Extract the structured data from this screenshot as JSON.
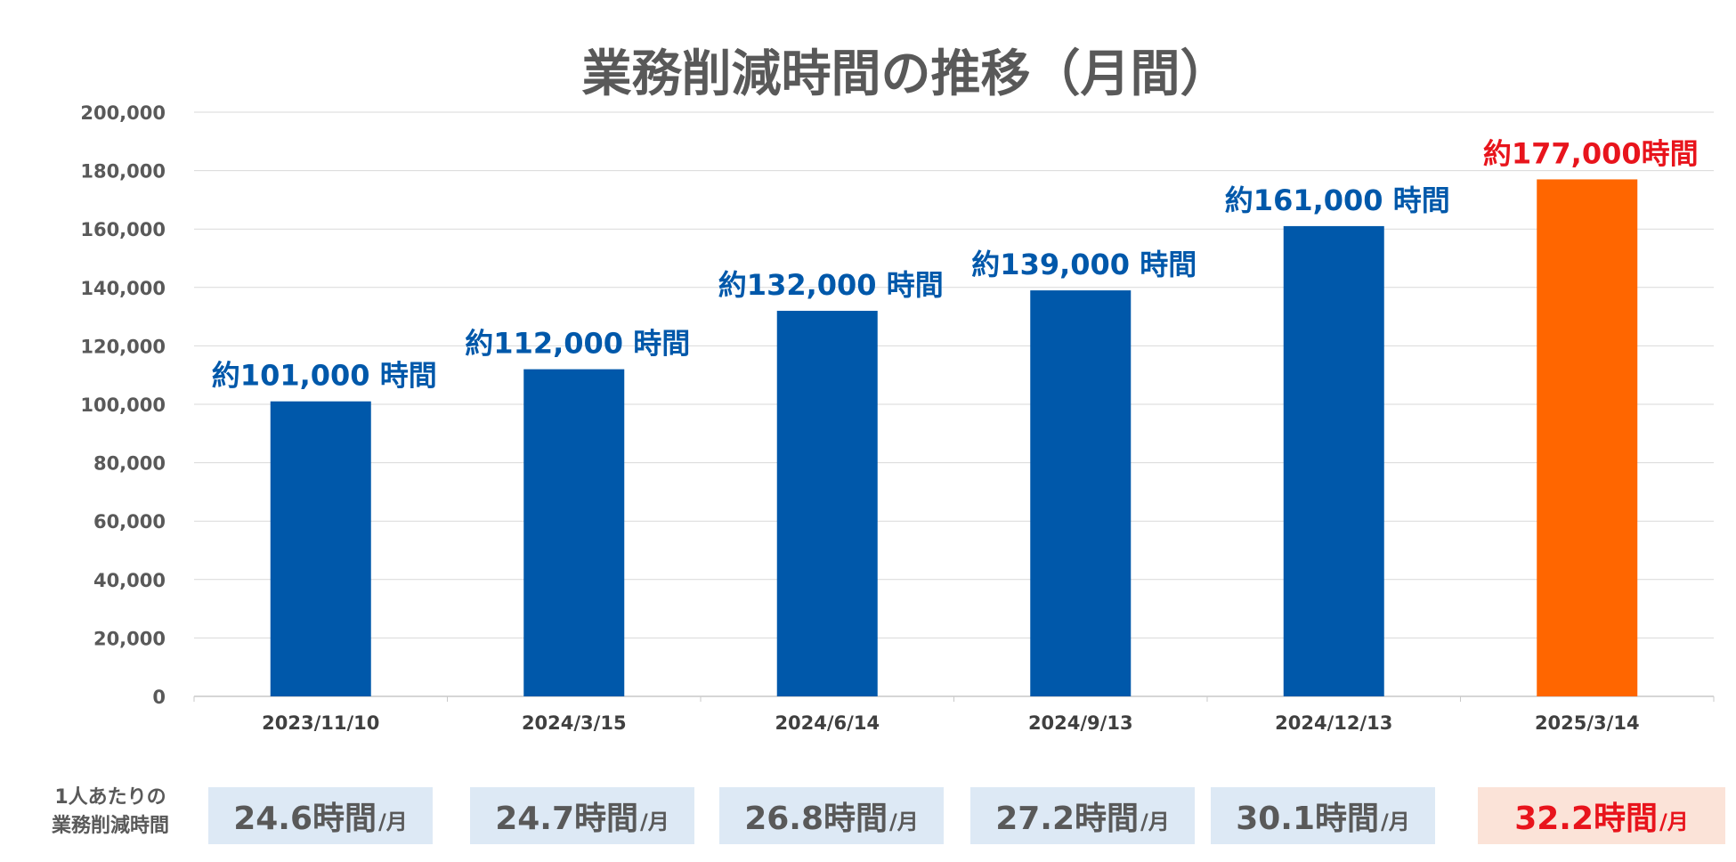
{
  "chart_data": {
    "type": "bar",
    "title": "業務削減時間の推移（月間）",
    "categories": [
      "2023/11/10",
      "2024/3/15",
      "2024/6/14",
      "2024/9/13",
      "2024/12/13",
      "2025/3/14"
    ],
    "values": [
      101000,
      112000,
      132000,
      139000,
      161000,
      177000
    ],
    "data_labels": [
      "約101,000 時間",
      "約112,000 時間",
      "約132,000 時間",
      "約139,000 時間",
      "約161,000 時間",
      "約177,000時間"
    ],
    "ylim": [
      0,
      200000
    ],
    "yticks": [
      "0",
      "20,000",
      "40,000",
      "60,000",
      "80,000",
      "100,000",
      "120,000",
      "140,000",
      "160,000",
      "180,000",
      "200,000"
    ],
    "grid": true,
    "colors": {
      "bar": "#0058aa",
      "highlight_bar": "#ff6600",
      "label": "#0058aa",
      "highlight_label": "#e8141c"
    },
    "highlight_index": 5
  },
  "per_person": {
    "label_line1": "1人あたりの",
    "label_line2": "業務削減時間",
    "items": [
      {
        "value": "24.6時間",
        "unit": "/月"
      },
      {
        "value": "24.7時間",
        "unit": "/月"
      },
      {
        "value": "26.8時間",
        "unit": "/月"
      },
      {
        "value": "27.2時間",
        "unit": "/月"
      },
      {
        "value": "30.1時間",
        "unit": "/月"
      },
      {
        "value": "32.2時間",
        "unit": "/月"
      }
    ]
  }
}
